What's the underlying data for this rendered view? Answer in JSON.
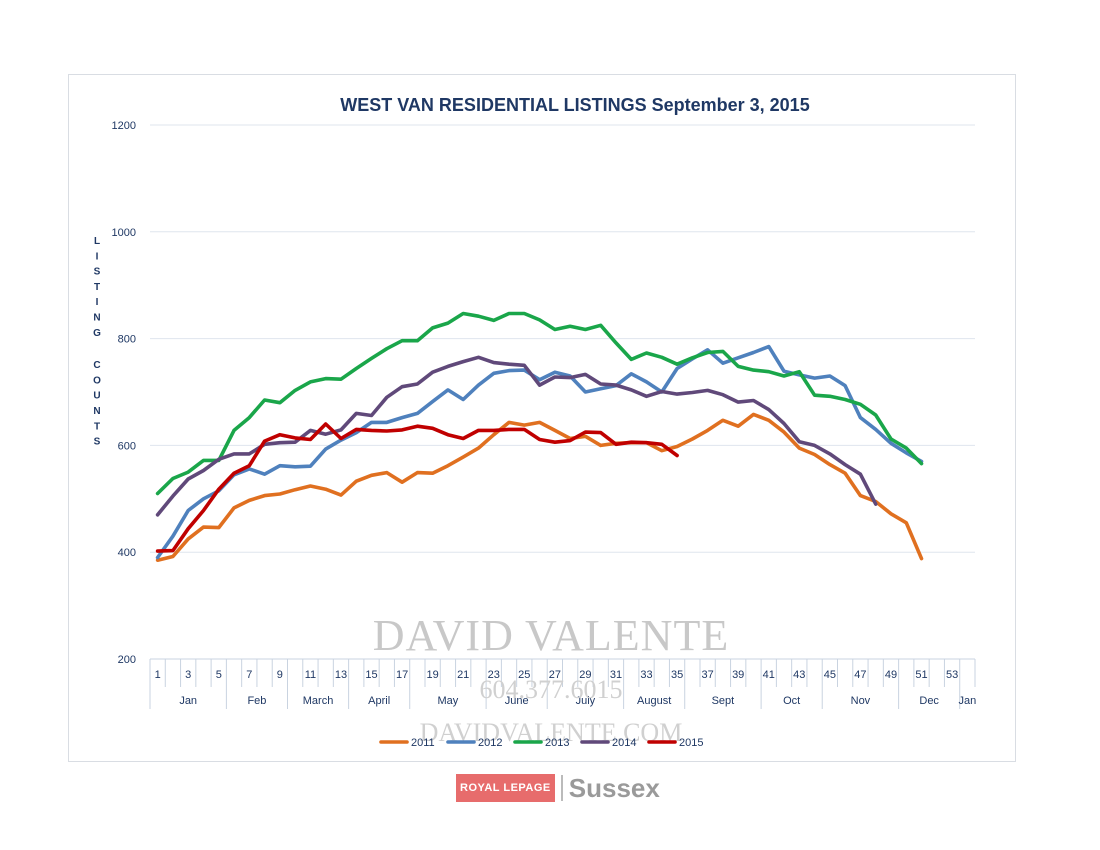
{
  "chart_data": {
    "type": "line",
    "title": "WEST VAN RESIDENTIAL LISTINGS September 3, 2015",
    "ylabel": "LISTING COUNTS",
    "xlabel": "",
    "ylim": [
      200,
      1200
    ],
    "yticks": [
      200,
      400,
      600,
      800,
      1000,
      1200
    ],
    "xlim": [
      1,
      53
    ],
    "xticks": [
      1,
      3,
      5,
      7,
      9,
      11,
      13,
      15,
      17,
      19,
      21,
      23,
      25,
      27,
      29,
      31,
      33,
      35,
      37,
      39,
      41,
      43,
      45,
      47,
      49,
      51,
      53
    ],
    "months": [
      {
        "label": "Jan",
        "start": 0,
        "end": 5
      },
      {
        "label": "Feb",
        "start": 5,
        "end": 9
      },
      {
        "label": "March",
        "start": 9,
        "end": 13
      },
      {
        "label": "April",
        "start": 13,
        "end": 17
      },
      {
        "label": "May",
        "start": 17,
        "end": 22
      },
      {
        "label": "June",
        "start": 22,
        "end": 26
      },
      {
        "label": "July",
        "start": 26,
        "end": 31
      },
      {
        "label": "August",
        "start": 31,
        "end": 35
      },
      {
        "label": "Sept",
        "start": 35,
        "end": 40
      },
      {
        "label": "Oct",
        "start": 40,
        "end": 44
      },
      {
        "label": "Nov",
        "start": 44,
        "end": 49
      },
      {
        "label": "Dec",
        "start": 49,
        "end": 53
      },
      {
        "label": "Jan",
        "start": 53,
        "end": 54
      }
    ],
    "grid": true,
    "legend_position": "bottom",
    "series": [
      {
        "name": "2011",
        "color": "#e07020",
        "x": [
          1,
          2,
          3,
          4,
          5,
          6,
          7,
          8,
          9,
          10,
          11,
          12,
          13,
          14,
          15,
          16,
          17,
          18,
          19,
          20,
          21,
          22,
          23,
          24,
          25,
          26,
          27,
          28,
          29,
          30,
          31,
          32,
          33,
          34,
          35,
          36,
          37,
          38,
          39,
          40,
          41,
          42,
          43,
          44,
          45,
          46,
          47,
          48,
          49,
          50,
          51
        ],
        "values": [
          385,
          392,
          425,
          447,
          446,
          483,
          497,
          506,
          509,
          517,
          524,
          518,
          507,
          533,
          544,
          549,
          531,
          549,
          548,
          562,
          578,
          595,
          620,
          643,
          638,
          643,
          628,
          613,
          617,
          600,
          604,
          605,
          605,
          590,
          598,
          612,
          628,
          647,
          636,
          658,
          647,
          625,
          595,
          583,
          564,
          548,
          506,
          495,
          472,
          455,
          388
        ]
      },
      {
        "name": "2012",
        "color": "#4f81bd",
        "x": [
          1,
          2,
          3,
          4,
          5,
          6,
          7,
          8,
          9,
          10,
          11,
          12,
          13,
          14,
          15,
          16,
          17,
          18,
          19,
          20,
          21,
          22,
          23,
          24,
          25,
          26,
          27,
          28,
          29,
          30,
          31,
          32,
          33,
          34,
          35,
          36,
          37,
          38,
          39,
          40,
          41,
          42,
          43,
          44,
          45,
          46,
          47,
          48,
          49,
          50,
          51
        ],
        "values": [
          390,
          430,
          478,
          500,
          515,
          545,
          556,
          546,
          562,
          560,
          561,
          593,
          610,
          624,
          643,
          643,
          652,
          660,
          682,
          704,
          686,
          713,
          735,
          740,
          741,
          723,
          737,
          730,
          700,
          706,
          712,
          734,
          719,
          700,
          744,
          762,
          779,
          754,
          764,
          774,
          785,
          739,
          732,
          726,
          730,
          712,
          652,
          630,
          604,
          586,
          570
        ]
      },
      {
        "name": "2013",
        "color": "#1aa64a",
        "x": [
          1,
          2,
          3,
          4,
          5,
          6,
          7,
          8,
          9,
          10,
          11,
          12,
          13,
          14,
          15,
          16,
          17,
          18,
          19,
          20,
          21,
          22,
          23,
          24,
          25,
          26,
          27,
          28,
          29,
          30,
          31,
          32,
          33,
          34,
          35,
          36,
          37,
          38,
          39,
          40,
          41,
          42,
          43,
          44,
          45,
          46,
          47,
          48,
          49,
          50,
          51
        ],
        "values": [
          510,
          538,
          550,
          572,
          572,
          628,
          652,
          685,
          680,
          703,
          719,
          725,
          724,
          744,
          763,
          781,
          796,
          796,
          820,
          829,
          847,
          842,
          834,
          847,
          847,
          835,
          817,
          823,
          817,
          825,
          792,
          761,
          773,
          765,
          752,
          764,
          774,
          776,
          748,
          741,
          738,
          730,
          738,
          694,
          692,
          686,
          677,
          657,
          612,
          595,
          566
        ]
      },
      {
        "name": "2014",
        "color": "#60497a",
        "x": [
          1,
          2,
          3,
          4,
          5,
          6,
          7,
          8,
          9,
          10,
          11,
          12,
          13,
          14,
          15,
          16,
          17,
          18,
          19,
          20,
          21,
          22,
          23,
          24,
          25,
          26,
          27,
          28,
          29,
          30,
          31,
          32,
          33,
          34,
          35,
          36,
          37,
          38,
          39,
          40,
          41,
          42,
          43,
          44,
          45,
          46,
          47,
          48
        ],
        "values": [
          470,
          505,
          537,
          553,
          574,
          584,
          584,
          602,
          605,
          606,
          628,
          621,
          629,
          660,
          656,
          690,
          710,
          715,
          737,
          748,
          757,
          765,
          755,
          752,
          750,
          713,
          728,
          727,
          733,
          715,
          713,
          704,
          692,
          701,
          696,
          699,
          703,
          695,
          681,
          684,
          667,
          641,
          607,
          600,
          584,
          564,
          546,
          490
        ]
      },
      {
        "name": "2015",
        "color": "#c00000",
        "x": [
          1,
          2,
          3,
          4,
          5,
          6,
          7,
          8,
          9,
          10,
          11,
          12,
          13,
          14,
          15,
          16,
          17,
          18,
          19,
          20,
          21,
          22,
          23,
          24,
          25,
          26,
          27,
          28,
          29,
          30,
          31,
          32,
          33,
          34,
          35
        ],
        "values": [
          402,
          403,
          444,
          478,
          518,
          548,
          562,
          608,
          620,
          614,
          611,
          640,
          613,
          630,
          628,
          627,
          629,
          636,
          632,
          620,
          613,
          628,
          628,
          630,
          630,
          611,
          606,
          609,
          625,
          624,
          602,
          606,
          605,
          602,
          581
        ]
      }
    ]
  },
  "watermark": {
    "name": "DAVID VALENTE",
    "phone": "604.377.6015",
    "web": "DAVIDVALENTE.COM"
  },
  "brand": {
    "left": "ROYAL LEPAGE",
    "right": "Sussex"
  }
}
